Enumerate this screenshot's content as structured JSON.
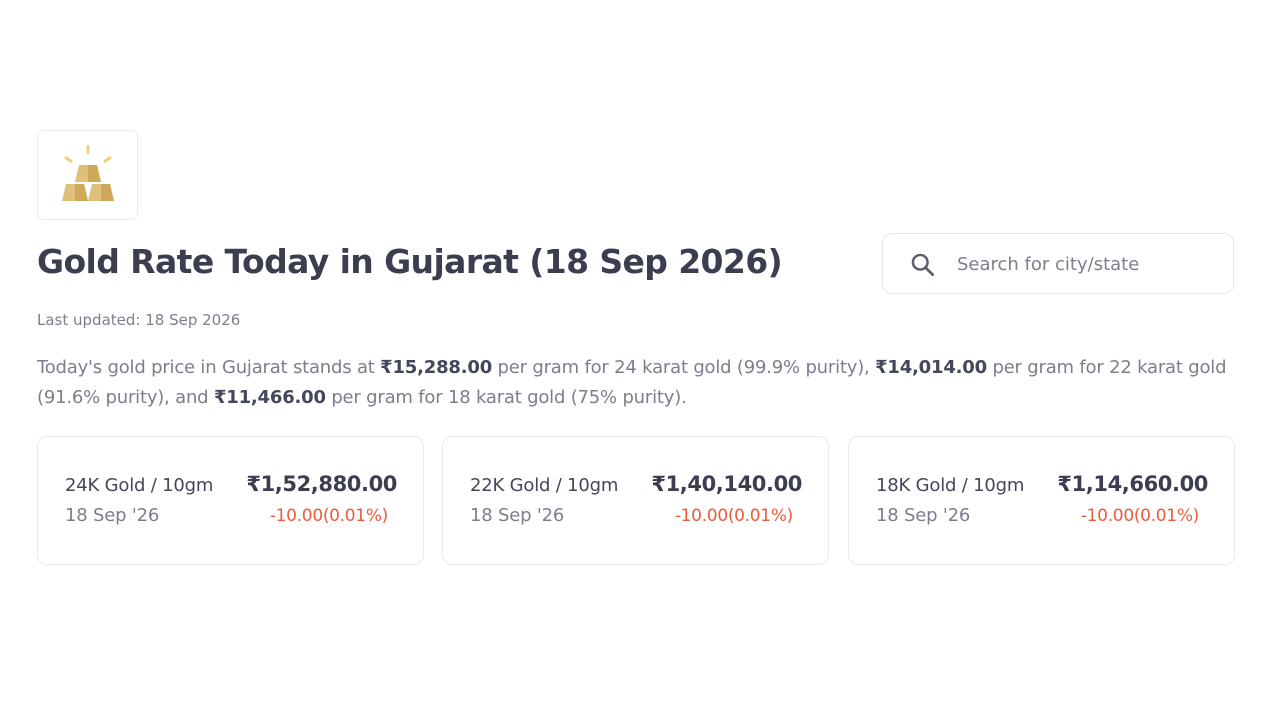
{
  "logo": {
    "icon": "gold-bars-icon",
    "colors": {
      "bar": "#d9b86a",
      "bar_shadow": "#c9a456",
      "shine": "#f0cf7a"
    }
  },
  "header": {
    "title": "Gold Rate Today in Gujarat (18 Sep 2026)"
  },
  "search": {
    "placeholder": "Search for city/state",
    "icon": "search-icon"
  },
  "last_updated": "Last updated: 18 Sep 2026",
  "summary": {
    "t1": "Today's gold price in Gujarat stands at ",
    "p24": "₹15,288.00",
    "t2": " per gram for 24 karat gold (99.9% purity), ",
    "p22": "₹14,014.00",
    "t3": " per gram for 22 karat gold (91.6% purity), and ",
    "p18": "₹11,466.00",
    "t4": " per gram for 18 karat gold (75% purity)."
  },
  "cards": [
    {
      "label": "24K Gold / 10gm",
      "date": "18 Sep '26",
      "price": "₹1,52,880.00",
      "change": "-10.00(0.01%)"
    },
    {
      "label": "22K Gold / 10gm",
      "date": "18 Sep '26",
      "price": "₹1,40,140.00",
      "change": "-10.00(0.01%)"
    },
    {
      "label": "18K Gold / 10gm",
      "date": "18 Sep '26",
      "price": "₹1,14,660.00",
      "change": "-10.00(0.01%)"
    }
  ],
  "colors": {
    "negative_change": "#eb5b3c",
    "heading": "#3b3e4f",
    "muted": "#7c7e8c"
  }
}
